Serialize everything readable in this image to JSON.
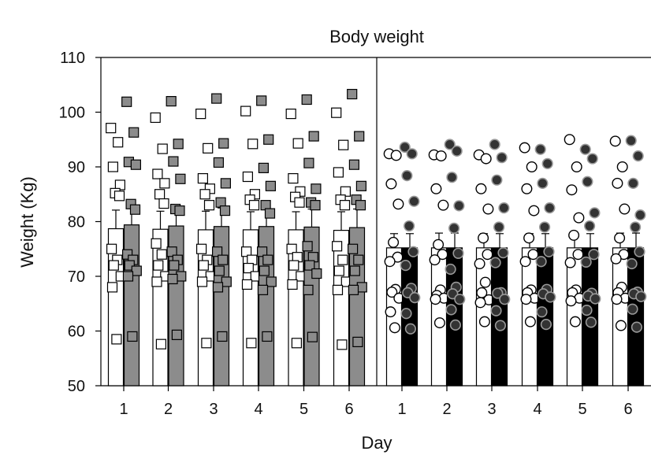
{
  "chart_data": {
    "type": "bar",
    "title": "Body weight",
    "xlabel": "Day",
    "ylabel": "Weight (Kg)",
    "ylim": [
      50,
      110
    ],
    "yticks": [
      50,
      60,
      70,
      80,
      90,
      100,
      110
    ],
    "panels": [
      {
        "categories": [
          "1",
          "2",
          "3",
          "4",
          "5",
          "6"
        ],
        "marker": "square",
        "series": [
          {
            "fill": "#ffffff",
            "values": [
              78.7,
              78.6,
              78.5,
              78.5,
              78.5,
              78.4
            ],
            "error": [
              3.4,
              3.3,
              3.4,
              3.3,
              3.3,
              3.4
            ],
            "points": [
              [
                97.1,
                94.5,
                90.0,
                86.7,
                85.2,
                84.7,
                75.0,
                73.0,
                72.0,
                70.0,
                68.0,
                58.5
              ],
              [
                99.0,
                93.3,
                88.7,
                87.0,
                85.0,
                83.3,
                76.0,
                74.0,
                72.0,
                70.0,
                69.0,
                57.6
              ],
              [
                99.7,
                93.4,
                87.9,
                86.0,
                85.0,
                83.0,
                75.0,
                73.0,
                72.0,
                70.0,
                69.0,
                57.8
              ],
              [
                100.2,
                94.2,
                88.2,
                85.0,
                84.0,
                83.0,
                74.5,
                73.0,
                71.5,
                70.0,
                68.5,
                57.8
              ],
              [
                99.7,
                94.3,
                87.9,
                85.5,
                84.5,
                83.5,
                75.0,
                73.5,
                72.0,
                70.0,
                68.5,
                57.8
              ],
              [
                99.9,
                94.0,
                89.0,
                85.5,
                84.0,
                83.0,
                75.5,
                73.0,
                71.0,
                69.0,
                67.5,
                57.5
              ]
            ]
          },
          {
            "fill": "#8c8c8c",
            "values": [
              79.4,
              79.2,
              79.1,
              79.1,
              79.0,
              78.9
            ],
            "error": [
              3.4,
              3.3,
              3.4,
              3.3,
              3.3,
              3.4
            ],
            "points": [
              [
                101.9,
                96.3,
                90.9,
                90.4,
                83.2,
                82.2,
                74.0,
                73.0,
                72.0,
                71.0,
                70.0,
                59.0
              ],
              [
                102.0,
                94.2,
                91.0,
                87.8,
                82.3,
                82.0,
                74.5,
                73.0,
                72.0,
                70.0,
                69.5,
                59.3
              ],
              [
                102.5,
                94.3,
                90.8,
                87.0,
                83.5,
                82.0,
                74.5,
                73.0,
                71.0,
                69.0,
                68.0,
                59.0
              ],
              [
                102.1,
                95.0,
                89.8,
                86.5,
                83.0,
                81.5,
                74.5,
                73.0,
                71.0,
                69.0,
                67.5,
                59.0
              ],
              [
                102.3,
                95.6,
                90.7,
                86.0,
                83.5,
                83.0,
                75.5,
                73.5,
                72.0,
                70.5,
                67.5,
                58.9
              ],
              [
                103.3,
                95.6,
                90.4,
                86.5,
                84.0,
                83.0,
                75.0,
                73.0,
                71.0,
                68.0,
                67.5,
                58.0
              ]
            ]
          }
        ]
      },
      {
        "categories": [
          "1",
          "2",
          "3",
          "4",
          "5",
          "6"
        ],
        "marker": "circle",
        "series": [
          {
            "fill": "#ffffff",
            "values": [
              75.2,
              75.2,
              75.2,
              75.2,
              75.2,
              75.2
            ],
            "error": [
              2.6,
              2.7,
              2.6,
              2.6,
              2.6,
              2.7
            ],
            "points": [
              [
                92.4,
                92.1,
                86.9,
                83.2,
                76.2,
                73.5,
                72.7,
                67.6,
                67.1,
                66.0,
                63.5,
                60.6
              ],
              [
                92.2,
                92.0,
                86.0,
                83.0,
                75.8,
                74.0,
                73.0,
                67.5,
                66.5,
                66.0,
                65.8,
                61.5
              ],
              [
                92.2,
                91.5,
                86.0,
                82.3,
                77.0,
                74.0,
                72.3,
                68.9,
                67.0,
                65.7,
                65.2,
                61.7
              ],
              [
                93.5,
                90.0,
                86.0,
                82.0,
                77.0,
                74.0,
                72.7,
                67.5,
                67.0,
                66.0,
                65.8,
                61.7
              ],
              [
                95.0,
                90.0,
                85.8,
                80.7,
                77.5,
                74.0,
                72.5,
                67.5,
                67.0,
                66.0,
                65.5,
                61.7
              ],
              [
                94.7,
                90.0,
                87.0,
                82.3,
                77.0,
                74.0,
                73.2,
                68.0,
                67.0,
                66.0,
                65.8,
                61.0
              ]
            ]
          },
          {
            "fill": "#000000",
            "values": [
              75.2,
              75.2,
              75.2,
              75.2,
              75.2,
              75.2
            ],
            "error": [
              2.6,
              2.7,
              2.6,
              2.6,
              2.6,
              2.7
            ],
            "points": [
              [
                93.6,
                92.4,
                88.4,
                83.7,
                79.2,
                74.5,
                72.0,
                67.8,
                67.0,
                66.1,
                63.2,
                60.4
              ],
              [
                94.1,
                92.9,
                88.1,
                82.9,
                78.8,
                74.2,
                71.3,
                68.0,
                66.8,
                65.8,
                63.9,
                61.1
              ],
              [
                94.1,
                91.7,
                87.6,
                82.5,
                79.0,
                74.3,
                72.5,
                67.0,
                66.9,
                65.8,
                63.7,
                61.0
              ],
              [
                93.2,
                90.6,
                87.0,
                82.5,
                79.0,
                74.5,
                72.7,
                67.6,
                66.8,
                66.2,
                63.5,
                61.2
              ],
              [
                93.2,
                91.5,
                87.3,
                81.6,
                79.2,
                74.0,
                72.6,
                66.9,
                66.4,
                65.9,
                63.8,
                61.6
              ],
              [
                94.8,
                92.0,
                87.0,
                81.2,
                79.0,
                74.5,
                72.3,
                67.1,
                66.8,
                66.3,
                64.0,
                60.7
              ]
            ]
          }
        ]
      }
    ]
  }
}
